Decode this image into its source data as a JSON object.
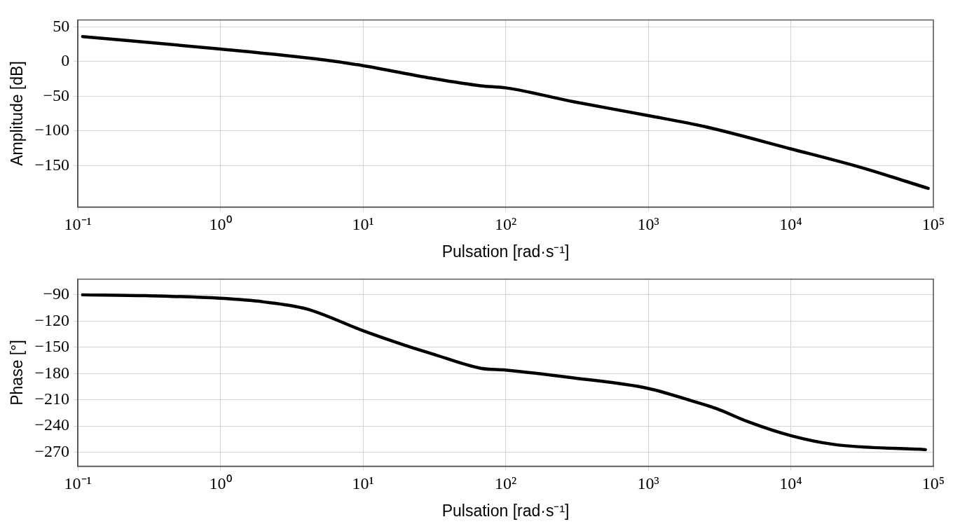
{
  "chart_data": [
    {
      "type": "line",
      "xlabel": "Pulsation [rad·s⁻¹]",
      "ylabel": "Amplitude [dB]",
      "log": "x",
      "grid": true,
      "legend": false,
      "marker": "none",
      "line_style": "solid",
      "xlim": [
        0.1,
        100000
      ],
      "xticks": [
        {
          "value": 0.1,
          "label": "10⁻¹"
        },
        {
          "value": 1,
          "label": "10⁰"
        },
        {
          "value": 10,
          "label": "10¹"
        },
        {
          "value": 100,
          "label": "10²"
        },
        {
          "value": 1000,
          "label": "10³"
        },
        {
          "value": 10000,
          "label": "10⁴"
        },
        {
          "value": 100000,
          "label": "10⁵"
        }
      ],
      "ylim": [
        -210,
        60
      ],
      "yticks": [
        50,
        0,
        -50,
        -100,
        -150
      ],
      "series": [
        {
          "color": "#000000",
          "x": [
            0.108,
            1,
            5,
            10,
            30,
            67,
            100,
            300,
            1000,
            2500,
            10000,
            30000,
            92000
          ],
          "values": [
            36,
            18,
            3,
            -6,
            -24,
            -35,
            -38,
            -58,
            -78,
            -94,
            -126,
            -152,
            -183
          ]
        }
      ]
    },
    {
      "type": "line",
      "xlabel": "Pulsation [rad·s⁻¹]",
      "ylabel": "Phase [°]",
      "log": "x",
      "grid": true,
      "legend": false,
      "marker": "none",
      "line_style": "solid",
      "xlim": [
        0.1,
        100000
      ],
      "xticks": [
        {
          "value": 0.1,
          "label": "10⁻¹"
        },
        {
          "value": 1,
          "label": "10⁰"
        },
        {
          "value": 10,
          "label": "10¹"
        },
        {
          "value": 100,
          "label": "10²"
        },
        {
          "value": 1000,
          "label": "10³"
        },
        {
          "value": 10000,
          "label": "10⁴"
        },
        {
          "value": 100000,
          "label": "10⁵"
        }
      ],
      "ylim": [
        -286,
        -72
      ],
      "yticks": [
        -90,
        -120,
        -150,
        -180,
        -210,
        -240,
        -270
      ],
      "series": [
        {
          "color": "#000000",
          "x": [
            0.108,
            0.3,
            1,
            2,
            4,
            10,
            20,
            30,
            67,
            100,
            300,
            1000,
            2000,
            3000,
            5000,
            10000,
            20000,
            88000
          ],
          "values": [
            -90,
            -91,
            -94,
            -98,
            -106,
            -131,
            -148,
            -157,
            -174,
            -176,
            -185,
            -197,
            -211,
            -220,
            -235,
            -251,
            -261,
            -267
          ]
        }
      ]
    }
  ]
}
